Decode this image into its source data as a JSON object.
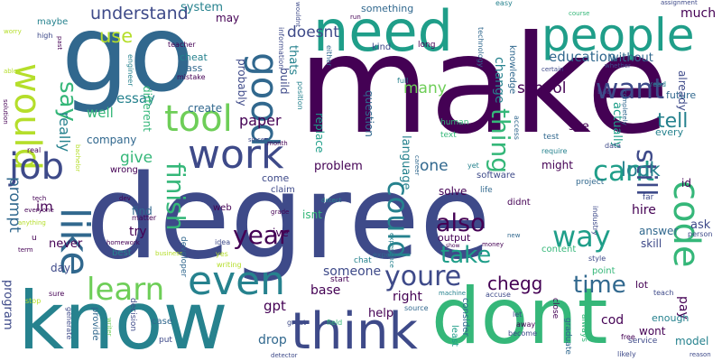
{
  "words": {
    "w1": "degree",
    "w2": "make",
    "w3": "go",
    "w4": "know",
    "w5": "dont",
    "w6": "need",
    "w7": "people",
    "w8": "think",
    "w9": "work",
    "w10": "even",
    "w11": "good",
    "w12": "would",
    "w13": "like",
    "w14": "tool",
    "w15": "job",
    "w16": "code",
    "w17": "youre",
    "w18": "take",
    "w19": "also",
    "w20": "could",
    "w21": "learn",
    "w22": "want",
    "w23": "way",
    "w24": "thing",
    "w25": "cant",
    "w26": "time",
    "w27": "year",
    "w28": "still",
    "w29": "finish",
    "w30": "say",
    "w31": "understand",
    "w32": "one",
    "w33": "school",
    "w34": "education",
    "w35": "look",
    "w36": "tell",
    "w37": "doesnt",
    "w38": "paper",
    "w39": "chegg",
    "w40": "many",
    "w41": "give",
    "w42": "essay",
    "w43": "well",
    "w44": "really",
    "w45": "prompt",
    "w46": "im",
    "w47": "use",
    "w48": "something",
    "w49": "system",
    "w50": "may",
    "w51": "thats",
    "w52": "wouldnt",
    "w53": "change",
    "w54": "without",
    "w55": "much",
    "w56": "already",
    "w57": "actually",
    "w58": "future",
    "w59": "see",
    "w60": "might",
    "w61": "answer",
    "w62": "skill",
    "w63": "ask",
    "w64": "pay",
    "w65": "lot",
    "w66": "cod",
    "w67": "enough",
    "w68": "wont",
    "w69": "model",
    "w70": "someone",
    "w71": "base",
    "w72": "right",
    "w73": "help",
    "w74": "drop",
    "w75": "gpt",
    "w76": "problem",
    "w77": "solve",
    "w78": "output",
    "w79": "question",
    "w80": "replace",
    "w81": "language",
    "w82": "company",
    "w83": "different",
    "w84": "create",
    "w85": "probably",
    "w86": "build",
    "w87": "class",
    "w88": "cheat",
    "w89": "teacher",
    "w90": "mistake",
    "w91": "maybe",
    "w92": "high",
    "w93": "engineer",
    "w94": "technology",
    "w95": "knowledge",
    "w96": "find",
    "w97": "try",
    "w98": "never",
    "w99": "day",
    "w100": "program",
    "w101": "matter",
    "w102": "best",
    "w103": "wrong",
    "w104": "homework",
    "w105": "come",
    "w106": "claim",
    "w107": "web",
    "w108": "isnt",
    "w109": "ive",
    "w110": "start",
    "w111": "chat",
    "w112": "source",
    "w113": "consider",
    "w114": "human",
    "w115": "text",
    "w116": "kind",
    "w117": "long",
    "w118": "either",
    "w119": "information",
    "w120": "full",
    "w121": "position",
    "w122": "easy",
    "w123": "read",
    "w124": "bad",
    "w125": "certain",
    "w126": "whether",
    "w127": "assignment",
    "w128": "course",
    "w129": "completely",
    "w130": "test",
    "w131": "require",
    "w132": "every",
    "w133": "data",
    "w134": "industry",
    "w135": "far",
    "w136": "hire",
    "w137": "id",
    "w138": "person",
    "w139": "project",
    "w140": "software",
    "w141": "content",
    "w142": "point",
    "w143": "style",
    "w144": "teach",
    "w145": "service",
    "w146": "free",
    "w147": "likely",
    "w148": "reason",
    "w149": "graduate",
    "w150": "always",
    "w151": "let",
    "w152": "away",
    "w153": "become",
    "w154": "close",
    "w155": "least",
    "w156": "machine",
    "w157": "accuse",
    "w158": "field",
    "w159": "great",
    "w160": "detector",
    "w161": "month",
    "w162": "since",
    "w163": "decision",
    "w164": "case",
    "w165": "put",
    "w166": "writer",
    "w167": "provide",
    "w168": "generate",
    "w169": "sure",
    "w170": "stop",
    "w171": "business",
    "w172": "writing",
    "w173": "yes",
    "w174": "idea",
    "w175": "developer",
    "w176": "grade",
    "w177": "detect",
    "w178": "experience",
    "w179": "expert",
    "w180": "money",
    "w181": "new",
    "w182": "life",
    "w183": "didnt",
    "w184": "access",
    "w185": "tech",
    "w186": "everyone",
    "w187": "anything",
    "w188": "term",
    "w189": "dev",
    "w190": "real",
    "w191": "solution",
    "w192": "able",
    "w193": "bachelor",
    "w194": "worry",
    "w195": "past",
    "w196": "run",
    "w197": "show",
    "w198": "yet",
    "w199": "career",
    "w200": "u"
  },
  "palette": {
    "dark_purple": "#440154",
    "indigo": "#3e4a89",
    "blue": "#31688e",
    "teal": "#26828e",
    "sea": "#1f9e89",
    "green": "#35b779",
    "lime": "#6ece58",
    "yellow": "#b5de2b"
  }
}
